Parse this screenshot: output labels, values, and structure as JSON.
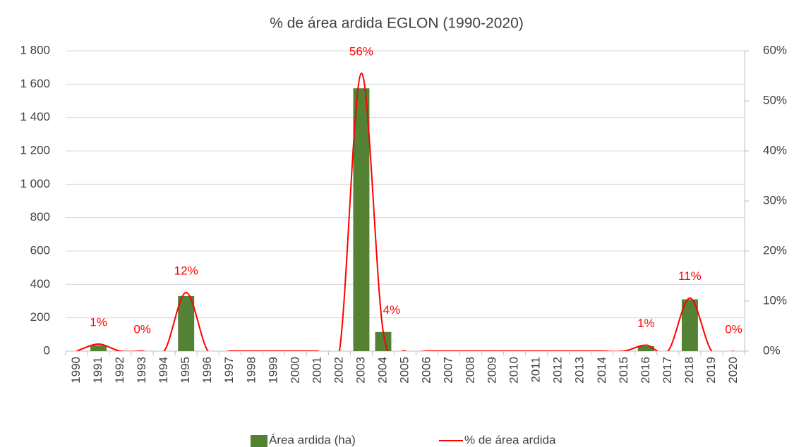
{
  "chart_data": {
    "type": "bar_line",
    "title": "% de área ardida EGLON (1990-2020)",
    "categories": [
      "1990",
      "1991",
      "1992",
      "1993",
      "1994",
      "1995",
      "1996",
      "1997",
      "1998",
      "1999",
      "2000",
      "2001",
      "2002",
      "2003",
      "2004",
      "2005",
      "2006",
      "2007",
      "2008",
      "2009",
      "2010",
      "2011",
      "2012",
      "2013",
      "2014",
      "2015",
      "2016",
      "2017",
      "2018",
      "2019",
      "2020"
    ],
    "series": [
      {
        "name": "Área ardida (ha)",
        "type": "bar",
        "color": "#548235",
        "values": [
          0,
          35,
          0,
          0,
          0,
          330,
          0,
          0,
          0,
          0,
          0,
          0,
          0,
          1575,
          115,
          0,
          0,
          0,
          0,
          0,
          0,
          0,
          0,
          0,
          0,
          0,
          30,
          0,
          310,
          0,
          0
        ]
      },
      {
        "name": "% de área ardida",
        "type": "line",
        "axis": "y2",
        "color": "#ff0000",
        "values": [
          0,
          1.4,
          0,
          0,
          0,
          11.7,
          0,
          0,
          0,
          0,
          0,
          0,
          0,
          55.5,
          3.9,
          0,
          0,
          0,
          0,
          0,
          0,
          0,
          0,
          0,
          0,
          0,
          1.2,
          0,
          10.6,
          0,
          0
        ],
        "value_labels": [
          null,
          "1%",
          null,
          "0%",
          null,
          "12%",
          null,
          null,
          null,
          null,
          null,
          null,
          null,
          "56%",
          "4%",
          null,
          null,
          null,
          null,
          null,
          null,
          null,
          null,
          null,
          null,
          null,
          "1%",
          null,
          "11%",
          null,
          "0%"
        ]
      }
    ],
    "ylim": [
      0,
      1800
    ],
    "yticks": [
      0,
      200,
      400,
      600,
      800,
      {
        "value": 1000,
        "label": "1 000"
      },
      {
        "value": 1200,
        "label": "1 200"
      },
      {
        "value": 1400,
        "label": "1 400"
      },
      {
        "value": 1600,
        "label": "1 600"
      },
      {
        "value": 1800,
        "label": "1 800"
      }
    ],
    "y2lim": [
      0,
      60
    ],
    "y2ticks": [
      {
        "value": 0,
        "label": "0%"
      },
      {
        "value": 10,
        "label": "10%"
      },
      {
        "value": 20,
        "label": "20%"
      },
      {
        "value": 30,
        "label": "30%"
      },
      {
        "value": 40,
        "label": "40%"
      },
      {
        "value": 50,
        "label": "50%"
      },
      {
        "value": 60,
        "label": "60%"
      }
    ],
    "grid": true,
    "legend": "bottom"
  }
}
